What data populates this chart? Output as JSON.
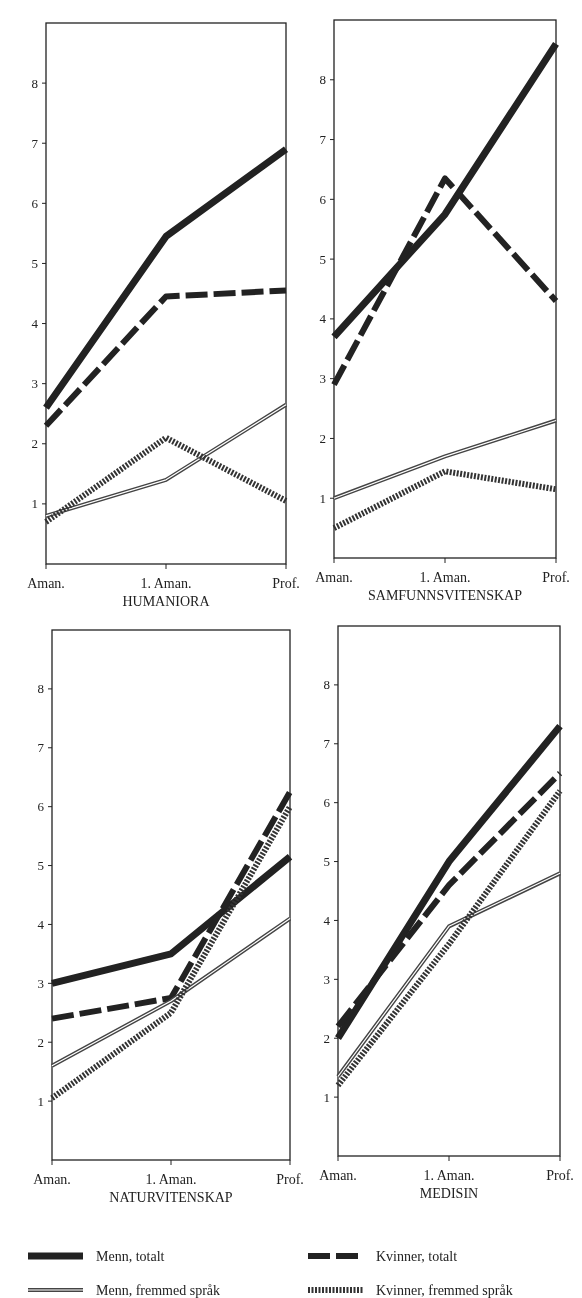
{
  "chart_data": [
    {
      "type": "line",
      "xlabel": "HUMANIORA",
      "categories": [
        "Aman.",
        "1. Aman.",
        "Prof."
      ],
      "ylim": [
        0,
        9
      ],
      "yticks": [
        1,
        2,
        3,
        4,
        5,
        6,
        7,
        8
      ],
      "series": [
        {
          "color": "#222222",
          "line_style": "solid",
          "values": [
            2.6,
            5.45,
            6.9
          ]
        },
        {
          "color": "#222222",
          "line_style": "dashed",
          "values": [
            2.3,
            4.45,
            4.55
          ]
        },
        {
          "color": "#444444",
          "line_style": "solid",
          "values": [
            0.8,
            1.4,
            2.65
          ]
        },
        {
          "color": "#333333",
          "line_style": "dotted",
          "values": [
            0.7,
            2.1,
            1.05
          ]
        }
      ]
    },
    {
      "type": "line",
      "xlabel": "SAMFUNNSVITENSKAP",
      "categories": [
        "Aman.",
        "1. Aman.",
        "Prof."
      ],
      "ylim": [
        0,
        9
      ],
      "yticks": [
        1,
        2,
        3,
        4,
        5,
        6,
        7,
        8
      ],
      "series": [
        {
          "color": "#222222",
          "line_style": "solid",
          "values": [
            3.7,
            5.75,
            8.6
          ]
        },
        {
          "color": "#222222",
          "line_style": "dashed",
          "values": [
            2.9,
            6.35,
            4.3
          ]
        },
        {
          "color": "#444444",
          "line_style": "solid",
          "values": [
            1.0,
            1.7,
            2.3
          ]
        },
        {
          "color": "#333333",
          "line_style": "dotted",
          "values": [
            0.5,
            1.45,
            1.15
          ]
        }
      ]
    },
    {
      "type": "line",
      "xlabel": "NATURVITENSKAP",
      "categories": [
        "Aman.",
        "1. Aman.",
        "Prof."
      ],
      "ylim": [
        0,
        9
      ],
      "yticks": [
        1,
        2,
        3,
        4,
        5,
        6,
        7,
        8
      ],
      "series": [
        {
          "color": "#222222",
          "line_style": "solid",
          "values": [
            3.0,
            3.5,
            5.15
          ]
        },
        {
          "color": "#222222",
          "line_style": "dashed",
          "values": [
            2.4,
            2.75,
            6.25
          ]
        },
        {
          "color": "#444444",
          "line_style": "solid",
          "values": [
            1.6,
            2.7,
            4.1
          ]
        },
        {
          "color": "#333333",
          "line_style": "dotted",
          "values": [
            1.05,
            2.5,
            6.0
          ]
        }
      ]
    },
    {
      "type": "line",
      "xlabel": "MEDISIN",
      "categories": [
        "Aman.",
        "1. Aman.",
        "Prof."
      ],
      "ylim": [
        0,
        9
      ],
      "yticks": [
        1,
        2,
        3,
        4,
        5,
        6,
        7,
        8
      ],
      "legend": "bottom",
      "series": [
        {
          "name": "Menn, totalt",
          "color": "#222222",
          "line_style": "solid",
          "values": [
            2.0,
            5.0,
            7.3
          ]
        },
        {
          "name": "Kvinner, totalt",
          "color": "#222222",
          "line_style": "dashed",
          "values": [
            2.2,
            4.6,
            6.5
          ]
        },
        {
          "name": "Menn, fremmed språk",
          "color": "#444444",
          "line_style": "solid",
          "values": [
            1.35,
            3.9,
            4.8
          ]
        },
        {
          "name": "Kvinner, fremmed språk",
          "color": "#333333",
          "line_style": "dotted",
          "values": [
            1.2,
            3.6,
            6.2
          ]
        }
      ]
    }
  ]
}
